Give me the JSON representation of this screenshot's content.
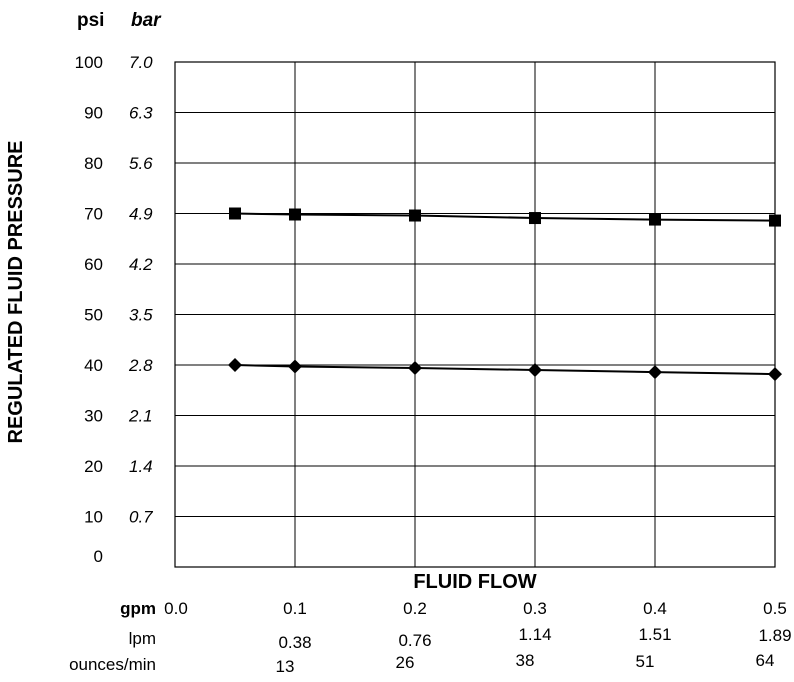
{
  "chart_data": {
    "type": "line",
    "xlabel": "FLUID FLOW",
    "ylabel": "REGULATED FLUID PRESSURE",
    "y_units": [
      "psi",
      "bar"
    ],
    "ylim": [
      0,
      100
    ],
    "xlim": [
      0.0,
      0.5
    ],
    "grid": true,
    "y_ticks_psi": [
      "100",
      "90",
      "80",
      "70",
      "60",
      "50",
      "40",
      "30",
      "20",
      "10",
      "0"
    ],
    "y_ticks_bar": [
      "7.0",
      "6.3",
      "5.6",
      "4.9",
      "4.2",
      "3.5",
      "2.8",
      "2.1",
      "1.4",
      "0.7"
    ],
    "x_rows": [
      {
        "label": "gpm",
        "ticks": [
          "0.0",
          "0.1",
          "0.2",
          "0.3",
          "0.4",
          "0.5"
        ]
      },
      {
        "label": "lpm",
        "ticks": [
          "0.38",
          "0.76",
          "1.14",
          "1.51",
          "1.89"
        ]
      },
      {
        "label": "ounces/min",
        "ticks": [
          "13",
          "26",
          "38",
          "51",
          "64"
        ]
      }
    ],
    "series": [
      {
        "marker": "square",
        "x": [
          0.05,
          0.1,
          0.2,
          0.3,
          0.4,
          0.5
        ],
        "y": [
          70,
          69.8,
          69.6,
          69.1,
          68.8,
          68.6
        ]
      },
      {
        "marker": "diamond",
        "x": [
          0.05,
          0.1,
          0.2,
          0.3,
          0.4,
          0.5
        ],
        "y": [
          40,
          39.7,
          39.4,
          39.0,
          38.6,
          38.2
        ]
      }
    ]
  }
}
